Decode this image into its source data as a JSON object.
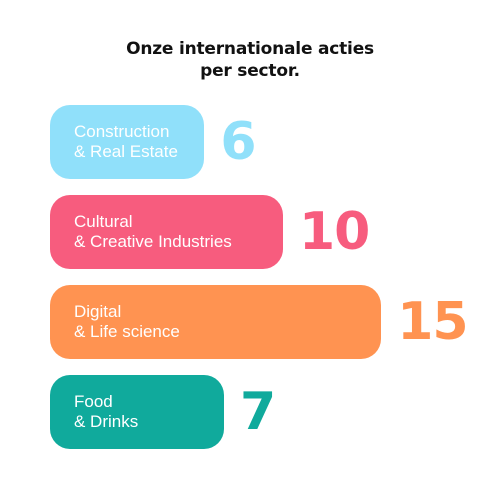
{
  "title": {
    "line1": "Onze internationale acties",
    "line2": "per sector."
  },
  "chart_data": {
    "type": "bar",
    "orientation": "horizontal",
    "categories": [
      [
        "Construction",
        "& Real Estate"
      ],
      [
        "Cultural",
        "& Creative Industries"
      ],
      [
        "Digital",
        "& Life science"
      ],
      [
        "Food",
        "& Drinks"
      ]
    ],
    "values": [
      6,
      10,
      15,
      7
    ],
    "labels": [
      "6",
      "10",
      "15",
      "7"
    ],
    "colors": [
      "#90e0fa",
      "#f75c7e",
      "#ff9351",
      "#10aa9c"
    ],
    "value_colors": [
      "#90e0fa",
      "#f75c7e",
      "#ff9351",
      "#10aa9c"
    ],
    "title": "Onze internationale acties per sector.",
    "xlabel": "",
    "ylabel": "",
    "xlim": [
      0,
      15
    ],
    "grid": false,
    "legend": "none"
  }
}
